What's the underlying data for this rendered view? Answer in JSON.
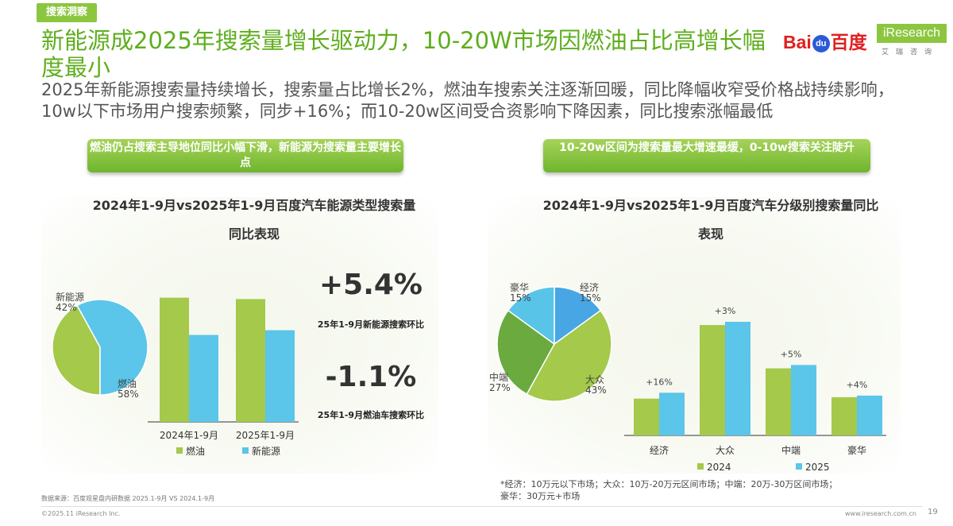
{
  "header": {
    "tag": "搜索洞察",
    "title": "新能源成2025年搜索量增长驱动力，10-20W市场因燃油占比高增长幅度最小",
    "subtitle": "2025年新能源搜索量持续增长，搜索量占比增长2%，燃油车搜索关注逐渐回暖，同比降幅收窄受价格战持续影响，10w以下市场用户搜索频繁，同步+16%；而10-20w区间受合资影响下降因素，同比搜索涨幅最低"
  },
  "logos": {
    "baidu_left": "Bai",
    "baidu_paw": "du",
    "baidu_right": "百度",
    "iresearch": "iResearch",
    "iresearch_sub": "艾瑞咨询"
  },
  "left_section": {
    "pill": "燃油仍占搜索主导地位同比小幅下滑，新能源为搜索量主要增长点",
    "chart_title": "2024年1-9月vs2025年1-9月百度汽车能源类型搜索量同比表现",
    "stat1_value": "+5.4%",
    "stat1_label": "25年1-9月新能源搜索环比",
    "stat2_value": "-1.1%",
    "stat2_label": "25年1-9月燃油车搜索环比"
  },
  "right_section": {
    "pill": "10-20w区间为搜索量最大增速最缓，0-10w搜索关注陡升",
    "chart_title": "2024年1-9月vs2025年1-9月百度汽车分级别搜索量同比表现"
  },
  "colors": {
    "green": "#a4c94b",
    "blue": "#5bc5ea",
    "pie_mid_green": "#6aaa3e",
    "pie_dark_blue": "#48a6e4",
    "pie_light_blue": "#58c4e8"
  },
  "chart_data": [
    {
      "type": "pie",
      "slices": [
        {
          "label": "新能源",
          "value": 42,
          "display": "42%",
          "color": "#a4c94b"
        },
        {
          "label": "燃油",
          "value": 58,
          "display": "58%",
          "color": "#5bc5ea"
        }
      ]
    },
    {
      "type": "bar",
      "categories": [
        "2024年1-9月",
        "2025年1-9月"
      ],
      "series": [
        {
          "name": "燃油",
          "color": "#a4c94b",
          "values": [
            100,
            98.9
          ]
        },
        {
          "name": "新能源",
          "color": "#5bc5ea",
          "values": [
            70,
            73.8
          ]
        }
      ],
      "ylim": [
        0,
        110
      ]
    },
    {
      "type": "pie",
      "slices": [
        {
          "label": "经济",
          "value": 15,
          "display": "15%",
          "color": "#48a6e4"
        },
        {
          "label": "大众",
          "value": 43,
          "display": "43%",
          "color": "#a4c94b"
        },
        {
          "label": "中端",
          "value": 27,
          "display": "27%",
          "color": "#6aaa3e"
        },
        {
          "label": "豪华",
          "value": 15,
          "display": "15%",
          "color": "#58c4e8"
        }
      ]
    },
    {
      "type": "bar",
      "categories": [
        "经济",
        "大众",
        "中端",
        "豪华"
      ],
      "series": [
        {
          "name": "2024",
          "color": "#a4c94b",
          "values": [
            30.5,
            91.5,
            55.6,
            31.7
          ]
        },
        {
          "name": "2025",
          "color": "#5bc5ea",
          "values": [
            35.4,
            94.2,
            58.4,
            33
          ]
        }
      ],
      "annotations": [
        "+16%",
        "+3%",
        "+5%",
        "+4%"
      ],
      "ylim": [
        0,
        110
      ]
    }
  ],
  "footer": {
    "footnote_line1": "*经济：10万元以下市场；大众：10万-20万元区间市场；中端：20万-30万区间市场；",
    "footnote_line2": "豪华：30万元+市场",
    "source": "数据来源：百度观星盘内研数据 2025.1-9月 VS 2024.1-9月",
    "copyright": "©2025.11 iResearch Inc.",
    "website": "www.iresearch.com.cn",
    "page": "19"
  }
}
